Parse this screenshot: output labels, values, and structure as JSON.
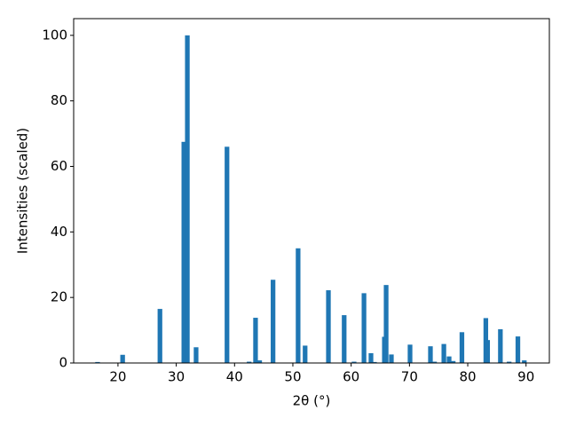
{
  "chart_data": {
    "type": "bar",
    "xlabel": "2θ (°)",
    "ylabel": "Intensities (scaled)",
    "x": [
      16.5,
      20.8,
      27.2,
      31.3,
      31.9,
      33.4,
      38.7,
      42.5,
      43.6,
      44.3,
      46.6,
      50.9,
      52.1,
      56.1,
      58.8,
      60.5,
      62.2,
      63.4,
      64.0,
      65.7,
      66.0,
      66.9,
      70.1,
      73.6,
      74.3,
      75.9,
      76.8,
      77.5,
      79.0,
      83.1,
      83.4,
      85.6,
      87.1,
      88.6,
      89.7
    ],
    "values": [
      0.3,
      2.5,
      16.5,
      67.5,
      100,
      4.8,
      66,
      0.4,
      13.8,
      0.8,
      25.4,
      35,
      5.3,
      22.2,
      14.6,
      0.4,
      21.3,
      3,
      0.3,
      8,
      23.8,
      2.6,
      5.6,
      5.1,
      0.4,
      5.8,
      2,
      0.6,
      9.4,
      13.7,
      7,
      10.3,
      0.4,
      8.1,
      0.8
    ],
    "color": "#1f77b4",
    "xlim": [
      12.4,
      94.0
    ],
    "xticks": [
      20,
      30,
      40,
      50,
      60,
      70,
      80,
      90
    ],
    "ylim": [
      0,
      105.1
    ],
    "yticks": [
      0,
      20,
      40,
      60,
      80,
      100
    ],
    "grid": false
  }
}
